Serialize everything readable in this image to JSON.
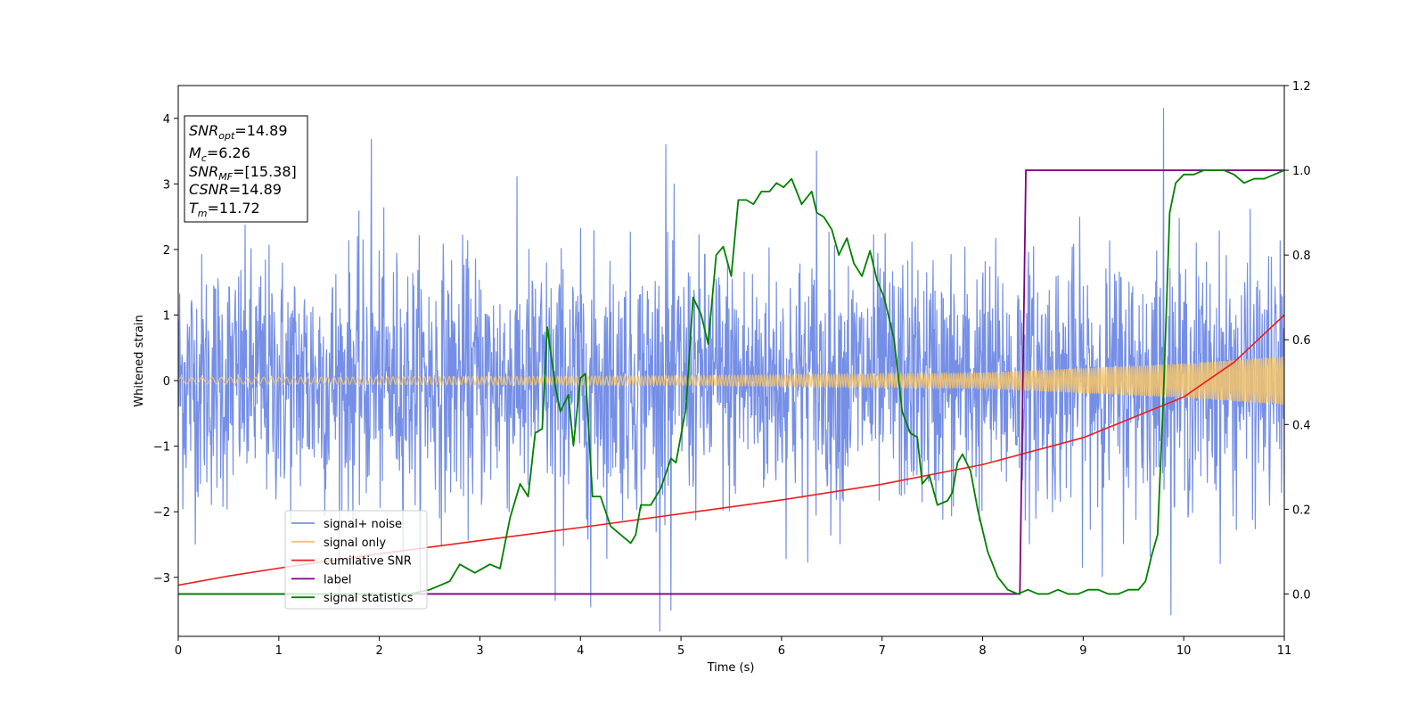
{
  "chart_data": {
    "type": "line",
    "xlabel": "Time (s)",
    "ylabel": "Whitened strain",
    "xlim": [
      0,
      11
    ],
    "ylim": [
      -3.9,
      4.5
    ],
    "ylim_right": [
      -0.1,
      1.2
    ],
    "x_ticks": [
      "0",
      "1",
      "2",
      "3",
      "4",
      "5",
      "6",
      "7",
      "8",
      "9",
      "10",
      "11"
    ],
    "y_ticks": [
      "−3",
      "−2",
      "−1",
      "0",
      "1",
      "2",
      "3",
      "4"
    ],
    "y_ticks_right": [
      "0.0",
      "0.2",
      "0.4",
      "0.6",
      "0.8",
      "1.0",
      "1.2"
    ],
    "legend_position": "lower-left",
    "annotation": {
      "lines": [
        {
          "sym": "SNR",
          "sub": "opt",
          "val": "=14.89"
        },
        {
          "sym": "M",
          "sub": "c",
          "val": "=6.26"
        },
        {
          "sym": "SNR",
          "sub": "MF",
          "val": "=[15.38]"
        },
        {
          "sym": "CSNR",
          "sub": "",
          "val": "=14.89"
        },
        {
          "sym": "T",
          "sub": "m",
          "val": "=11.72"
        }
      ]
    },
    "series": [
      {
        "name": "signal+ noise",
        "color": "#758fe6",
        "axis": "left",
        "noise_std": 1.0,
        "notable_peaks": [
          [
            1.92,
            3.68
          ],
          [
            4.85,
            3.6
          ],
          [
            6.35,
            3.5
          ],
          [
            9.8,
            4.15
          ],
          [
            4.1,
            -3.45
          ],
          [
            4.9,
            -3.5
          ],
          [
            3.75,
            -3.35
          ]
        ]
      },
      {
        "name": "signal only",
        "color": "#f5c46a",
        "axis": "left",
        "amplitude_envelope": [
          [
            0,
            0.05
          ],
          [
            5,
            0.07
          ],
          [
            8,
            0.12
          ],
          [
            10,
            0.26
          ],
          [
            11,
            0.37
          ]
        ]
      },
      {
        "name": "cumilative SNR",
        "color": "#ee1c1c",
        "axis": "left",
        "points": [
          [
            0,
            -3.12
          ],
          [
            0.5,
            -2.98
          ],
          [
            1,
            -2.86
          ],
          [
            2,
            -2.64
          ],
          [
            3,
            -2.44
          ],
          [
            4,
            -2.24
          ],
          [
            5,
            -2.03
          ],
          [
            6,
            -1.82
          ],
          [
            7,
            -1.58
          ],
          [
            8,
            -1.28
          ],
          [
            9,
            -0.87
          ],
          [
            10,
            -0.25
          ],
          [
            10.5,
            0.28
          ],
          [
            11,
            1.0
          ]
        ]
      },
      {
        "name": "label",
        "color": "#800080",
        "axis": "right",
        "points": [
          [
            0,
            0.0
          ],
          [
            8.37,
            0.0
          ],
          [
            8.43,
            1.0
          ],
          [
            11,
            1.0
          ]
        ]
      },
      {
        "name": "signal statistics",
        "color": "#008000",
        "axis": "right",
        "points": [
          [
            0,
            0.0
          ],
          [
            1.5,
            0.0
          ],
          [
            2.3,
            0.0
          ],
          [
            2.5,
            0.01
          ],
          [
            2.7,
            0.03
          ],
          [
            2.8,
            0.07
          ],
          [
            2.95,
            0.05
          ],
          [
            3.1,
            0.07
          ],
          [
            3.2,
            0.06
          ],
          [
            3.3,
            0.18
          ],
          [
            3.4,
            0.26
          ],
          [
            3.48,
            0.23
          ],
          [
            3.55,
            0.38
          ],
          [
            3.62,
            0.39
          ],
          [
            3.67,
            0.63
          ],
          [
            3.75,
            0.49
          ],
          [
            3.8,
            0.43
          ],
          [
            3.88,
            0.47
          ],
          [
            3.93,
            0.35
          ],
          [
            4.0,
            0.51
          ],
          [
            4.05,
            0.52
          ],
          [
            4.12,
            0.23
          ],
          [
            4.2,
            0.23
          ],
          [
            4.3,
            0.16
          ],
          [
            4.4,
            0.14
          ],
          [
            4.5,
            0.12
          ],
          [
            4.55,
            0.14
          ],
          [
            4.6,
            0.21
          ],
          [
            4.7,
            0.21
          ],
          [
            4.8,
            0.25
          ],
          [
            4.9,
            0.32
          ],
          [
            4.95,
            0.31
          ],
          [
            5.05,
            0.44
          ],
          [
            5.12,
            0.7
          ],
          [
            5.2,
            0.66
          ],
          [
            5.27,
            0.59
          ],
          [
            5.35,
            0.8
          ],
          [
            5.42,
            0.82
          ],
          [
            5.5,
            0.75
          ],
          [
            5.57,
            0.93
          ],
          [
            5.65,
            0.93
          ],
          [
            5.72,
            0.92
          ],
          [
            5.8,
            0.95
          ],
          [
            5.88,
            0.95
          ],
          [
            5.95,
            0.97
          ],
          [
            6.02,
            0.96
          ],
          [
            6.1,
            0.98
          ],
          [
            6.2,
            0.92
          ],
          [
            6.3,
            0.95
          ],
          [
            6.35,
            0.9
          ],
          [
            6.42,
            0.89
          ],
          [
            6.5,
            0.86
          ],
          [
            6.57,
            0.8
          ],
          [
            6.65,
            0.84
          ],
          [
            6.72,
            0.78
          ],
          [
            6.8,
            0.75
          ],
          [
            6.88,
            0.81
          ],
          [
            6.95,
            0.74
          ],
          [
            7.02,
            0.7
          ],
          [
            7.12,
            0.6
          ],
          [
            7.2,
            0.43
          ],
          [
            7.28,
            0.38
          ],
          [
            7.35,
            0.37
          ],
          [
            7.4,
            0.26
          ],
          [
            7.47,
            0.28
          ],
          [
            7.55,
            0.21
          ],
          [
            7.65,
            0.22
          ],
          [
            7.7,
            0.24
          ],
          [
            7.75,
            0.31
          ],
          [
            7.8,
            0.33
          ],
          [
            7.88,
            0.29
          ],
          [
            7.95,
            0.2
          ],
          [
            8.05,
            0.1
          ],
          [
            8.15,
            0.04
          ],
          [
            8.25,
            0.01
          ],
          [
            8.35,
            0.0
          ],
          [
            8.45,
            0.01
          ],
          [
            8.55,
            0.0
          ],
          [
            8.65,
            0.0
          ],
          [
            8.75,
            0.01
          ],
          [
            8.85,
            0.0
          ],
          [
            8.95,
            0.0
          ],
          [
            9.05,
            0.01
          ],
          [
            9.15,
            0.01
          ],
          [
            9.25,
            0.0
          ],
          [
            9.35,
            0.0
          ],
          [
            9.45,
            0.01
          ],
          [
            9.55,
            0.01
          ],
          [
            9.62,
            0.03
          ],
          [
            9.68,
            0.09
          ],
          [
            9.74,
            0.14
          ],
          [
            9.8,
            0.48
          ],
          [
            9.86,
            0.9
          ],
          [
            9.92,
            0.97
          ],
          [
            10.0,
            0.99
          ],
          [
            10.1,
            0.99
          ],
          [
            10.2,
            1.0
          ],
          [
            10.3,
            1.0
          ],
          [
            10.4,
            1.0
          ],
          [
            10.5,
            0.99
          ],
          [
            10.6,
            0.97
          ],
          [
            10.7,
            0.98
          ],
          [
            10.8,
            0.98
          ],
          [
            10.9,
            0.99
          ],
          [
            11.0,
            1.0
          ]
        ]
      }
    ]
  }
}
